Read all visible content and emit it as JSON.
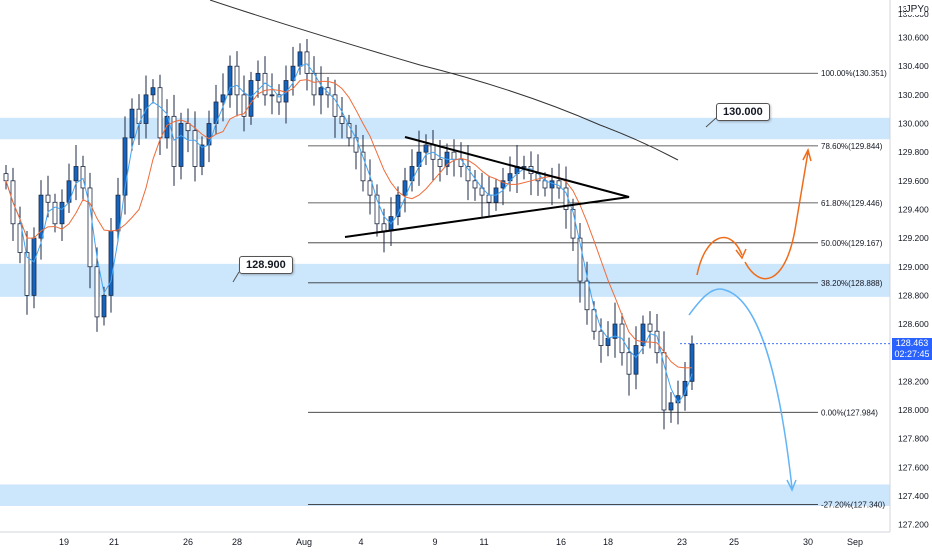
{
  "currency_label": "JPY",
  "current_price": {
    "value": "128.463",
    "countdown": "02:27:45"
  },
  "callouts": [
    {
      "id": "callout-130000",
      "text": "130.000"
    },
    {
      "id": "callout-128900",
      "text": "128.900"
    }
  ],
  "chart_data": {
    "type": "candlestick",
    "y_axis": {
      "range": [
        127.1,
        131.0
      ],
      "ticks": [
        "127.200",
        "127.400",
        "127.600",
        "127.800",
        "128.000",
        "128.200",
        "128.400",
        "128.600",
        "128.800",
        "129.000",
        "129.200",
        "129.400",
        "129.600",
        "129.800",
        "130.000",
        "130.200",
        "130.400",
        "130.600",
        "130.800"
      ],
      "top_label": "130.600"
    },
    "x_axis": {
      "ticks": [
        "19",
        "21",
        "26",
        "28",
        "Aug",
        "4",
        "9",
        "11",
        "16",
        "18",
        "23",
        "25",
        "30",
        "Sep"
      ]
    },
    "zones": [
      {
        "name": "zone-130",
        "from": 129.89,
        "to": 130.04,
        "label": "130.000"
      },
      {
        "name": "zone-128.9",
        "from": 128.79,
        "to": 129.02,
        "label": "128.900"
      },
      {
        "name": "zone-127.4",
        "from": 127.33,
        "to": 127.48,
        "label": ""
      }
    ],
    "fib_levels": [
      {
        "label": "100.00%(130.351)",
        "value": 130.351
      },
      {
        "label": "78.60%(129.844)",
        "value": 129.844
      },
      {
        "label": "61.80%(129.446)",
        "value": 129.446
      },
      {
        "label": "50.00%(129.167)",
        "value": 129.167
      },
      {
        "label": "38.20%(128.888)",
        "value": 128.888
      },
      {
        "label": "0.00%(127.984)",
        "value": 127.984
      },
      {
        "label": "-27.20%(127.340)",
        "value": 127.34
      }
    ],
    "price_series": [
      129.6,
      129.3,
      129.1,
      128.8,
      129.2,
      129.5,
      129.45,
      129.3,
      129.45,
      129.6,
      129.7,
      129.55,
      129.0,
      128.65,
      128.8,
      129.25,
      129.5,
      129.9,
      130.1,
      130.0,
      130.2,
      130.25,
      129.9,
      130.05,
      129.7,
      130.0,
      129.95,
      129.7,
      129.85,
      130.0,
      130.15,
      130.2,
      130.4,
      130.2,
      130.05,
      130.3,
      130.35,
      130.2,
      130.2,
      130.15,
      130.3,
      130.4,
      130.5,
      130.35,
      130.2,
      130.25,
      130.2,
      130.05,
      130.0,
      129.9,
      129.8,
      129.6,
      129.5,
      129.3,
      129.25,
      129.35,
      129.5,
      129.6,
      129.7,
      129.8,
      129.85,
      129.75,
      129.7,
      129.8,
      129.75,
      129.7,
      129.6,
      129.55,
      129.5,
      129.45,
      129.55,
      129.6,
      129.65,
      129.7,
      129.7,
      129.65,
      129.6,
      129.55,
      129.6,
      129.55,
      129.4,
      129.2,
      128.9,
      128.7,
      128.55,
      128.45,
      128.5,
      128.6,
      128.4,
      128.25,
      128.45,
      128.6,
      128.55,
      128.4,
      128.0,
      128.05,
      128.1,
      128.2,
      128.46
    ]
  }
}
